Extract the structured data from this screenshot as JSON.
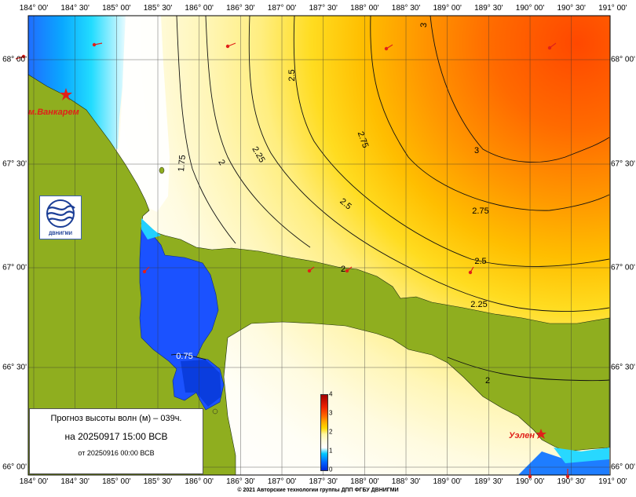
{
  "axes": {
    "lon_ticks": [
      "184° 00'",
      "184° 30'",
      "185° 00'",
      "185° 30'",
      "186° 00'",
      "186° 30'",
      "187° 00'",
      "187° 30'",
      "188° 00'",
      "188° 30'",
      "189° 00'",
      "189° 30'",
      "190° 00'",
      "190° 30'",
      "191° 00'"
    ],
    "lat_ticks": [
      "68° 00'",
      "67° 30'",
      "67° 00'",
      "66° 30'",
      "66° 00'"
    ]
  },
  "contours": {
    "labels": [
      "3",
      "3",
      "2.75",
      "2.75",
      "2.5",
      "2.5",
      "2.5",
      "2.25",
      "2.25",
      "2",
      "2",
      "1.75",
      "0.75",
      "2"
    ]
  },
  "places": {
    "vankarem": "м.Ванкарем",
    "uelen": "Уэлен"
  },
  "info": {
    "title": "Прогноз высоты волн (м) – 039ч.",
    "valid": "на 20250917 15:00 ВСВ",
    "issued": "от 20250916 00:00 ВСВ"
  },
  "colorbar": {
    "ticks": [
      "4",
      "3",
      "2",
      "1",
      "0"
    ],
    "colors": {
      "low": "#0028d8",
      "mid": "#ffffff",
      "high": "#a00000"
    }
  },
  "logo": {
    "text": "ДВНИГМИ",
    "icon": "dvnigmi-wave-logo"
  },
  "land_color": "#8fae1f",
  "copyright": "© 2021 Авторские технологии группы ДПП ФГБУ ДВНИГМИ"
}
